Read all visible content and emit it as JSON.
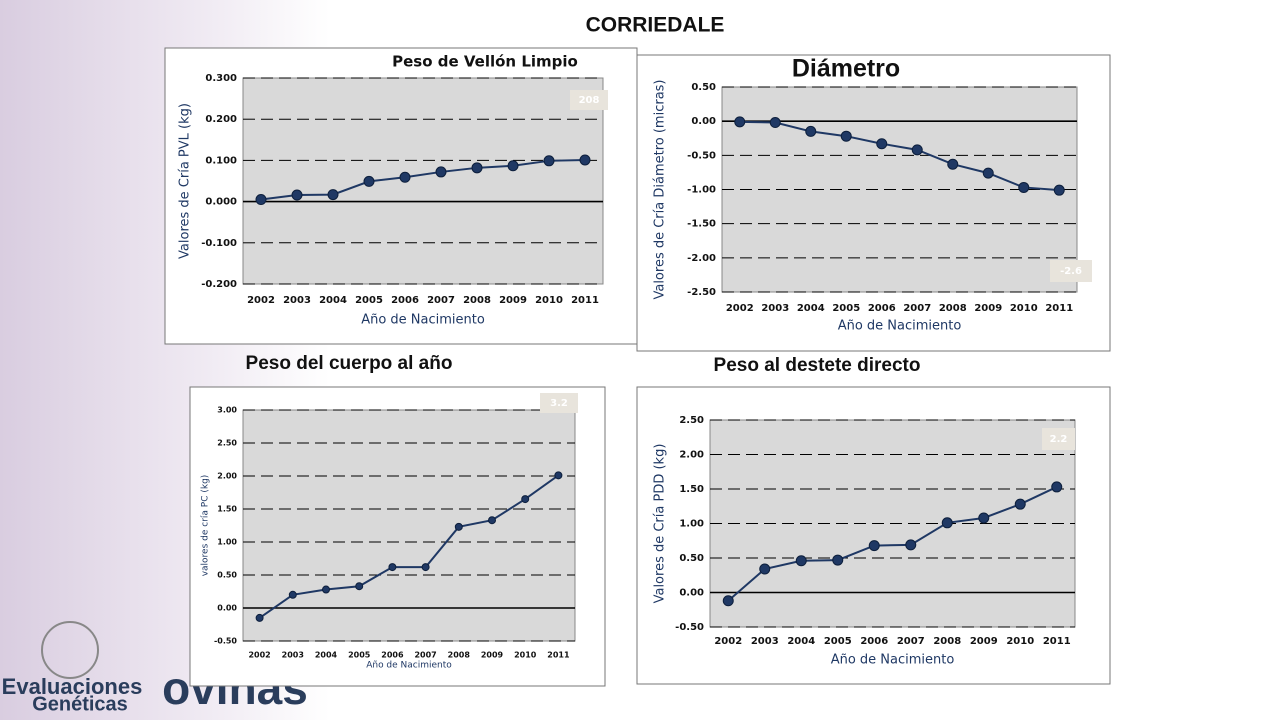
{
  "title": "CORRIEDALE",
  "logo": {
    "line1": "Evaluaciones",
    "line2": "Genéticas",
    "brand": "ovinas"
  },
  "chart_data": [
    {
      "type": "line",
      "title": "Peso de Vellón Limpio",
      "y_label": "Valores de Cría PVL (kg)",
      "x_label": "Año de Nacimiento",
      "annotation": "208",
      "categories": [
        "2002",
        "2003",
        "2004",
        "2005",
        "2006",
        "2007",
        "2008",
        "2009",
        "2010",
        "2011"
      ],
      "series": [
        {
          "color": "#1f3864",
          "values": [
            0.005,
            0.016,
            0.017,
            0.049,
            0.059,
            0.072,
            0.082,
            0.087,
            0.099,
            0.101
          ]
        }
      ],
      "ylim": [
        -0.2,
        0.3
      ],
      "yticks": [
        {
          "value": -0.2,
          "label": "-0.200"
        },
        {
          "value": -0.1,
          "label": "-0.100"
        },
        {
          "value": 0,
          "label": "0.000"
        },
        {
          "value": 0.1,
          "label": "0.100"
        },
        {
          "value": 0.2,
          "label": "0.200"
        },
        {
          "value": 0.3,
          "label": "0.300"
        }
      ],
      "grid": true
    },
    {
      "type": "line",
      "title": "Diámetro",
      "y_label": "Valores de Cría Diámetro (micras)",
      "x_label": "Año de Nacimiento",
      "annotation": "-2.6",
      "categories": [
        "2002",
        "2003",
        "2004",
        "2005",
        "2006",
        "2007",
        "2008",
        "2009",
        "2010",
        "2011"
      ],
      "series": [
        {
          "color": "#1f3864",
          "values": [
            -0.01,
            -0.02,
            -0.15,
            -0.22,
            -0.33,
            -0.42,
            -0.63,
            -0.76,
            -0.97,
            -1.01
          ]
        }
      ],
      "ylim": [
        -2.5,
        0.5
      ],
      "yticks": [
        {
          "value": -2.5,
          "label": "-2.50"
        },
        {
          "value": -2,
          "label": "-2.00"
        },
        {
          "value": -1.5,
          "label": "-1.50"
        },
        {
          "value": -1,
          "label": "-1.00"
        },
        {
          "value": -0.5,
          "label": "-0.50"
        },
        {
          "value": 0,
          "label": "0.00"
        },
        {
          "value": 0.5,
          "label": "0.50"
        }
      ],
      "grid": true
    },
    {
      "type": "line",
      "title": "Peso del cuerpo al año",
      "y_label": "valores de cría PC (kg)",
      "x_label": "Año de Nacimiento",
      "annotation": "3.2",
      "categories": [
        "2002",
        "2003",
        "2004",
        "2005",
        "2006",
        "2007",
        "2008",
        "2009",
        "2010",
        "2011"
      ],
      "series": [
        {
          "color": "#1f3864",
          "values": [
            -0.15,
            0.2,
            0.28,
            0.33,
            0.62,
            0.62,
            1.23,
            1.33,
            1.65,
            2.01
          ]
        }
      ],
      "ylim": [
        -0.5,
        3
      ],
      "yticks": [
        {
          "value": -0.5,
          "label": "-0.50"
        },
        {
          "value": 0,
          "label": "0.00"
        },
        {
          "value": 0.5,
          "label": "0.50"
        },
        {
          "value": 1,
          "label": "1.00"
        },
        {
          "value": 1.5,
          "label": "1.50"
        },
        {
          "value": 2,
          "label": "2.00"
        },
        {
          "value": 2.5,
          "label": "2.50"
        },
        {
          "value": 3,
          "label": "3.00"
        }
      ],
      "grid": true
    },
    {
      "type": "line",
      "title": "Peso al destete directo",
      "y_label": "Valores de Cría PDD (kg)",
      "x_label": "Año de Nacimiento",
      "annotation": "2.2",
      "categories": [
        "2002",
        "2003",
        "2004",
        "2005",
        "2006",
        "2007",
        "2008",
        "2009",
        "2010",
        "2011"
      ],
      "series": [
        {
          "color": "#1f3864",
          "values": [
            -0.12,
            0.34,
            0.46,
            0.47,
            0.68,
            0.69,
            1.01,
            1.08,
            1.28,
            1.53
          ]
        }
      ],
      "ylim": [
        -0.5,
        2.5
      ],
      "yticks": [
        {
          "value": -0.5,
          "label": "-0.50"
        },
        {
          "value": 0,
          "label": "0.00"
        },
        {
          "value": 0.5,
          "label": "0.50"
        },
        {
          "value": 1,
          "label": "1.00"
        },
        {
          "value": 1.5,
          "label": "1.50"
        },
        {
          "value": 2,
          "label": "2.00"
        },
        {
          "value": 2.5,
          "label": "2.50"
        }
      ],
      "grid": true
    }
  ]
}
